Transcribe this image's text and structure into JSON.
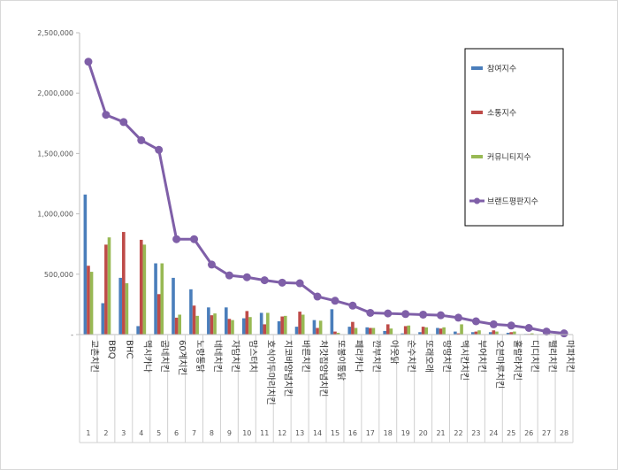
{
  "chart_data": {
    "type": "bar",
    "title": "",
    "xlabel": "",
    "ylabel": "",
    "ylim": [
      0,
      2500000
    ],
    "yticks": [
      "-",
      "500,000",
      "1,000,000",
      "1,500,000",
      "2,000,000",
      "2,500,000"
    ],
    "ytick_values": [
      0,
      500000,
      1000000,
      1500000,
      2000000,
      2500000
    ],
    "grid": false,
    "legend_position": "right",
    "categories": [
      "교촌치킨",
      "BBQ",
      "BHC",
      "멕시카나",
      "굽네치킨",
      "60계치킨",
      "노랑통닭",
      "네네치킨",
      "자담치킨",
      "맘스터치",
      "호식이두마리치킨",
      "지코바양념치킨",
      "바른치킨",
      "처갓집양념치킨",
      "또봉이통닭",
      "페리카나",
      "깐부치킨",
      "아웃닭",
      "순수치킨",
      "또래오래",
      "땅땅치킨",
      "멕시칸치킨",
      "부어치킨",
      "오븐마루치킨",
      "훌랄라치킨",
      "디디치킨",
      "펠리치킨",
      "마파치킨"
    ],
    "ranks": [
      "1",
      "2",
      "3",
      "4",
      "5",
      "6",
      "7",
      "8",
      "9",
      "10",
      "11",
      "12",
      "13",
      "14",
      "15",
      "16",
      "17",
      "18",
      "19",
      "20",
      "21",
      "22",
      "23",
      "24",
      "25",
      "26",
      "27",
      "28"
    ],
    "series": [
      {
        "name": "참여지수",
        "kind": "bar",
        "color": "#4a7ebb",
        "values": [
          1160000,
          260000,
          470000,
          70000,
          590000,
          470000,
          375000,
          225000,
          225000,
          135000,
          180000,
          110000,
          65000,
          120000,
          210000,
          65000,
          60000,
          30000,
          10000,
          20000,
          55000,
          25000,
          20000,
          20000,
          15000,
          5000,
          3000,
          2000
        ]
      },
      {
        "name": "소통지수",
        "kind": "bar",
        "color": "#be4b48",
        "values": [
          570000,
          745000,
          850000,
          785000,
          335000,
          140000,
          240000,
          160000,
          130000,
          195000,
          85000,
          150000,
          190000,
          55000,
          25000,
          105000,
          55000,
          85000,
          70000,
          65000,
          50000,
          10000,
          25000,
          35000,
          20000,
          5000,
          3000,
          1000
        ]
      },
      {
        "name": "커뮤니티지수",
        "kind": "bar",
        "color": "#98b954",
        "values": [
          520000,
          805000,
          425000,
          745000,
          590000,
          165000,
          155000,
          175000,
          120000,
          145000,
          180000,
          155000,
          165000,
          115000,
          15000,
          55000,
          55000,
          50000,
          75000,
          60000,
          60000,
          85000,
          35000,
          25000,
          25000,
          10000,
          5000,
          2000
        ]
      },
      {
        "name": "브랜드평판지수",
        "kind": "line",
        "color": "#7f5fa8",
        "values": [
          2260000,
          1820000,
          1760000,
          1610000,
          1530000,
          790000,
          790000,
          580000,
          490000,
          475000,
          450000,
          430000,
          425000,
          315000,
          280000,
          240000,
          180000,
          175000,
          170000,
          165000,
          160000,
          140000,
          110000,
          85000,
          75000,
          55000,
          25000,
          10000
        ]
      }
    ]
  }
}
